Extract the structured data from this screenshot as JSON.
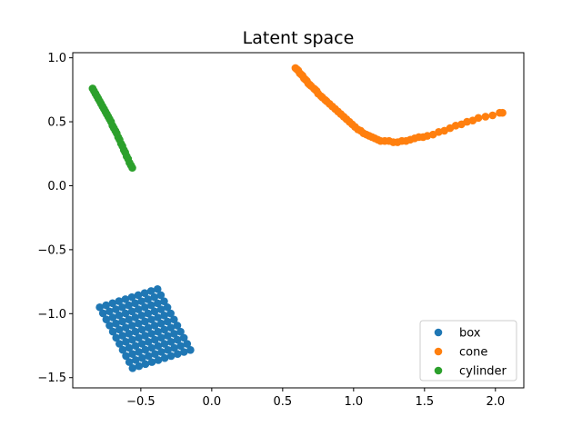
{
  "chart_data": {
    "type": "scatter",
    "title": "Latent space",
    "xlabel": "",
    "ylabel": "",
    "xlim": [
      -0.98,
      2.2
    ],
    "ylim": [
      -1.58,
      1.04
    ],
    "xticks": [
      -0.5,
      0.0,
      0.5,
      1.0,
      1.5,
      2.0
    ],
    "xtick_labels": [
      "−0.5",
      "0.0",
      "0.5",
      "1.0",
      "1.5",
      "2.0"
    ],
    "yticks": [
      -1.5,
      -1.0,
      -0.5,
      0.0,
      0.5,
      1.0
    ],
    "ytick_labels": [
      "−1.5",
      "−1.0",
      "−0.5",
      "0.0",
      "0.5",
      "1.0"
    ],
    "grid": false,
    "legend_position": "bottom-right",
    "series": [
      {
        "name": "box",
        "color": "#1f77b4",
        "grid": {
          "origin": [
            -0.79,
            -0.95
          ],
          "col_step": [
            0.0453,
            0.0158
          ],
          "row_step": [
            0.0232,
            -0.0476
          ],
          "cols": 10,
          "rows": 11
        }
      },
      {
        "name": "cone",
        "color": "#ff7f0e",
        "points": [
          [
            0.59,
            0.92
          ],
          [
            0.6,
            0.91
          ],
          [
            0.61,
            0.9
          ],
          [
            0.62,
            0.88
          ],
          [
            0.63,
            0.87
          ],
          [
            0.64,
            0.86
          ],
          [
            0.65,
            0.84
          ],
          [
            0.66,
            0.83
          ],
          [
            0.67,
            0.82
          ],
          [
            0.68,
            0.8
          ],
          [
            0.69,
            0.79
          ],
          [
            0.7,
            0.78
          ],
          [
            0.72,
            0.76
          ],
          [
            0.73,
            0.75
          ],
          [
            0.74,
            0.74
          ],
          [
            0.75,
            0.72
          ],
          [
            0.77,
            0.7
          ],
          [
            0.78,
            0.69
          ],
          [
            0.8,
            0.67
          ],
          [
            0.81,
            0.66
          ],
          [
            0.83,
            0.64
          ],
          [
            0.85,
            0.62
          ],
          [
            0.87,
            0.6
          ],
          [
            0.89,
            0.58
          ],
          [
            0.91,
            0.56
          ],
          [
            0.93,
            0.54
          ],
          [
            0.95,
            0.52
          ],
          [
            0.97,
            0.5
          ],
          [
            0.99,
            0.48
          ],
          [
            1.01,
            0.46
          ],
          [
            1.03,
            0.44
          ],
          [
            1.05,
            0.43
          ],
          [
            1.07,
            0.41
          ],
          [
            1.09,
            0.4
          ],
          [
            1.11,
            0.39
          ],
          [
            1.13,
            0.38
          ],
          [
            1.15,
            0.37
          ],
          [
            1.17,
            0.36
          ],
          [
            1.19,
            0.35
          ],
          [
            1.22,
            0.35
          ],
          [
            1.25,
            0.35
          ],
          [
            1.28,
            0.34
          ],
          [
            1.31,
            0.34
          ],
          [
            1.34,
            0.35
          ],
          [
            1.37,
            0.35
          ],
          [
            1.4,
            0.36
          ],
          [
            1.43,
            0.37
          ],
          [
            1.46,
            0.38
          ],
          [
            1.49,
            0.38
          ],
          [
            1.52,
            0.39
          ],
          [
            1.56,
            0.4
          ],
          [
            1.6,
            0.42
          ],
          [
            1.64,
            0.43
          ],
          [
            1.68,
            0.45
          ],
          [
            1.72,
            0.47
          ],
          [
            1.76,
            0.48
          ],
          [
            1.8,
            0.5
          ],
          [
            1.84,
            0.51
          ],
          [
            1.88,
            0.53
          ],
          [
            1.93,
            0.54
          ],
          [
            1.98,
            0.55
          ],
          [
            2.03,
            0.57
          ],
          [
            2.05,
            0.57
          ]
        ]
      },
      {
        "name": "cylinder",
        "color": "#2ca02c",
        "points": [
          [
            -0.84,
            0.76
          ],
          [
            -0.83,
            0.74
          ],
          [
            -0.82,
            0.72
          ],
          [
            -0.81,
            0.7
          ],
          [
            -0.8,
            0.68
          ],
          [
            -0.79,
            0.66
          ],
          [
            -0.78,
            0.64
          ],
          [
            -0.77,
            0.62
          ],
          [
            -0.76,
            0.6
          ],
          [
            -0.75,
            0.58
          ],
          [
            -0.74,
            0.56
          ],
          [
            -0.73,
            0.54
          ],
          [
            -0.72,
            0.52
          ],
          [
            -0.71,
            0.5
          ],
          [
            -0.7,
            0.47
          ],
          [
            -0.69,
            0.45
          ],
          [
            -0.68,
            0.43
          ],
          [
            -0.67,
            0.41
          ],
          [
            -0.66,
            0.38
          ],
          [
            -0.65,
            0.36
          ],
          [
            -0.64,
            0.33
          ],
          [
            -0.63,
            0.31
          ],
          [
            -0.62,
            0.28
          ],
          [
            -0.61,
            0.26
          ],
          [
            -0.6,
            0.23
          ],
          [
            -0.59,
            0.21
          ],
          [
            -0.58,
            0.18
          ],
          [
            -0.57,
            0.16
          ],
          [
            -0.56,
            0.14
          ]
        ]
      }
    ]
  }
}
